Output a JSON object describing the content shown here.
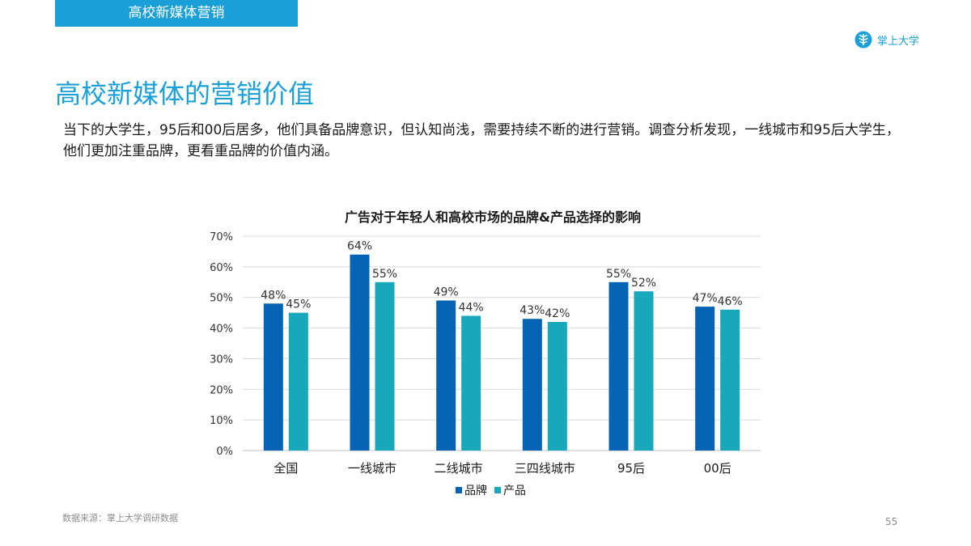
{
  "header": {
    "section_label": "高校新媒体营销"
  },
  "brand": {
    "name": "掌上大学",
    "icon": "leaf-logo-icon"
  },
  "page": {
    "title": "高校新媒体的营销价值",
    "intro": "当下的大学生，95后和00后居多，他们具备品牌意识，但认知尚浅，需要持续不断的进行营销。调查分析发现，一线城市和95后大学生，他们更加注重品牌，更看重品牌的价值内涵。"
  },
  "footer": {
    "source": "数据来源：掌上大学调研数据",
    "page_number": "55"
  },
  "colors": {
    "accent": "#1a9fd6",
    "brand_series": "#0563b5",
    "product_series": "#17a8bc"
  },
  "chart_data": {
    "type": "bar",
    "title": "广告对于年轻人和高校市场的品牌&产品选择的影响",
    "categories": [
      "全国",
      "一线城市",
      "二线城市",
      "三四线城市",
      "95后",
      "00后"
    ],
    "series": [
      {
        "name": "品牌",
        "values": [
          48,
          64,
          49,
          43,
          55,
          47
        ],
        "labels": [
          "48%",
          "64%",
          "49%",
          "43%",
          "55%",
          "47%"
        ],
        "color": "#0563b5"
      },
      {
        "name": "产品",
        "values": [
          45,
          55,
          44,
          42,
          52,
          46
        ],
        "labels": [
          "45%",
          "55%",
          "44%",
          "42%",
          "52%",
          "46%"
        ],
        "color": "#17a8bc"
      }
    ],
    "yticks": [
      0,
      10,
      20,
      30,
      40,
      50,
      60,
      70
    ],
    "ytick_labels": [
      "0%",
      "10%",
      "20%",
      "30%",
      "40%",
      "50%",
      "60%",
      "70%"
    ],
    "ylim": [
      0,
      70
    ],
    "xlabel": "",
    "ylabel": "",
    "grid": true,
    "legend_position": "bottom"
  }
}
